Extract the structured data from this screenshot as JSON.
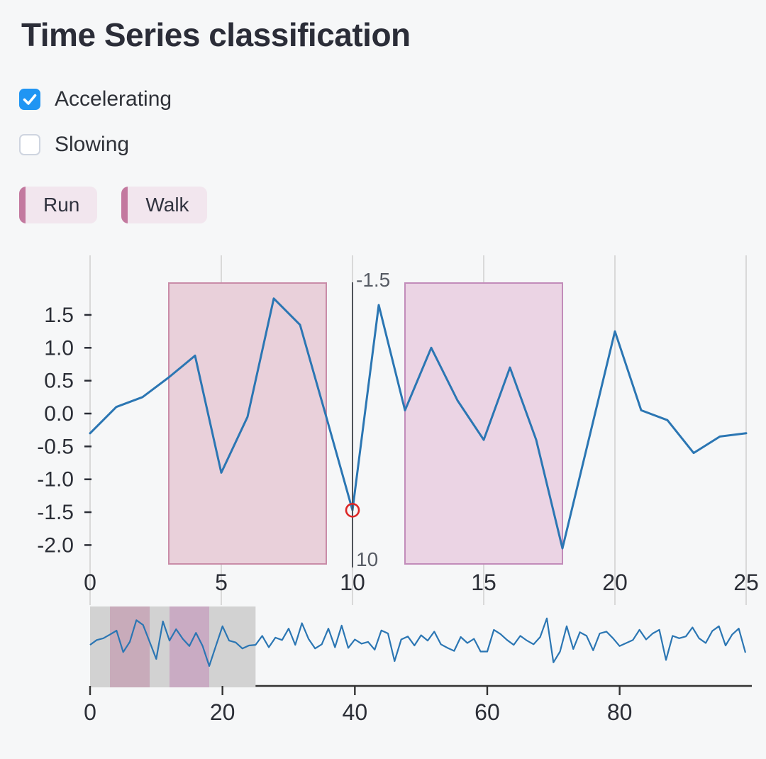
{
  "page": {
    "title": "Time Series classification",
    "background": "#f6f7f8"
  },
  "controls": {
    "checkboxes": [
      {
        "label": "Accelerating",
        "checked": true
      },
      {
        "label": "Slowing",
        "checked": false
      }
    ],
    "pills": [
      {
        "label": "Run"
      },
      {
        "label": "Walk"
      }
    ]
  },
  "colors": {
    "checkbox_checked": "#2095f3",
    "pill_background": "#f2e6ee",
    "pill_bar": "#c3799f",
    "line": "#2b76b3",
    "grid": "#d9d9d9",
    "axis_label": "#2b2e36",
    "axis_line": "#333333",
    "spike_line": "#50535a",
    "spike_label": "#565b64",
    "hover_marker": "#dc2626",
    "region_run_fill": "#e9d0da",
    "region_run_border": "#c98ca8",
    "region_walk_fill": "#ebd4e4",
    "region_walk_border": "#c28cba",
    "brush_fill": "#d2d2d2",
    "brush_band_run": "#c8abba",
    "brush_band_walk": "#c9abc3"
  },
  "chart_data": [
    {
      "type": "line",
      "name": "main-timeseries",
      "xlim": [
        0,
        25
      ],
      "x_ticks": [
        0,
        5,
        10,
        15,
        20,
        25
      ],
      "y_ticks": [
        "1.5",
        "1.0",
        "0.5",
        "0.0",
        "-0.5",
        "-1.0",
        "-1.5",
        "-2.0"
      ],
      "x": [
        0,
        1,
        2,
        3,
        4,
        5,
        6,
        7,
        8,
        9,
        10,
        11,
        12,
        13,
        14,
        15,
        16,
        17,
        18,
        19,
        20,
        21,
        22,
        23,
        24,
        25
      ],
      "values": [
        -0.3,
        0.1,
        0.25,
        0.55,
        0.88,
        -0.9,
        -0.05,
        1.75,
        1.35,
        -0.05,
        -1.47,
        1.65,
        0.05,
        1.0,
        0.2,
        -0.4,
        0.7,
        -0.4,
        -2.05,
        -0.4,
        1.25,
        0.05,
        -0.1,
        -0.6,
        -0.35,
        -0.3
      ],
      "regions": [
        {
          "start": 3,
          "end": 9,
          "category": "Run"
        },
        {
          "start": 12,
          "end": 18,
          "category": "Walk"
        }
      ],
      "hover": {
        "x": 10,
        "value": -1.47,
        "x_label": "10",
        "y_label": "-1.5"
      },
      "grid": "vertical",
      "legend": "none"
    },
    {
      "type": "line",
      "name": "rangeslider-overview",
      "xlim": [
        0,
        100
      ],
      "x_ticks": [
        0,
        20,
        40,
        60,
        80
      ],
      "brush": {
        "start": 0,
        "end": 25
      },
      "bands": [
        {
          "start": 3,
          "end": 9,
          "category": "Run"
        },
        {
          "start": 12,
          "end": 18,
          "category": "Walk"
        }
      ],
      "values": [
        -0.3,
        0.1,
        0.25,
        0.55,
        0.88,
        -0.9,
        -0.05,
        1.75,
        1.35,
        -0.05,
        -1.47,
        1.65,
        0.05,
        1.0,
        0.2,
        -0.4,
        0.7,
        -0.4,
        -2.05,
        -0.4,
        1.25,
        0.05,
        -0.1,
        -0.6,
        -0.35,
        -0.3,
        0.45,
        -0.5,
        0.3,
        0.1,
        1.05,
        -0.3,
        1.5,
        0.2,
        -0.6,
        -0.25,
        1.05,
        -0.5,
        1.3,
        -0.55,
        0.15,
        -0.2,
        -0.05,
        -0.7,
        0.9,
        0.65,
        -1.65,
        0.15,
        0.4,
        -0.35,
        0.5,
        0.05,
        0.8,
        -0.25,
        -0.55,
        -0.8,
        0.35,
        -0.15,
        0.2,
        -0.85,
        -0.85,
        0.95,
        0.6,
        0.1,
        -0.3,
        0.45,
        0.05,
        -0.25,
        0.35,
        1.9,
        -1.75,
        -0.85,
        1.25,
        -0.65,
        0.75,
        0.45,
        -0.75,
        0.65,
        0.8,
        0.25,
        -0.4,
        -0.15,
        0.1,
        0.95,
        0.15,
        0.65,
        0.95,
        -1.55,
        0.45,
        0.25,
        0.4,
        1.15,
        0.25,
        -0.15,
        0.85,
        1.25,
        -0.35,
        0.55,
        1.05,
        -0.95
      ]
    }
  ]
}
